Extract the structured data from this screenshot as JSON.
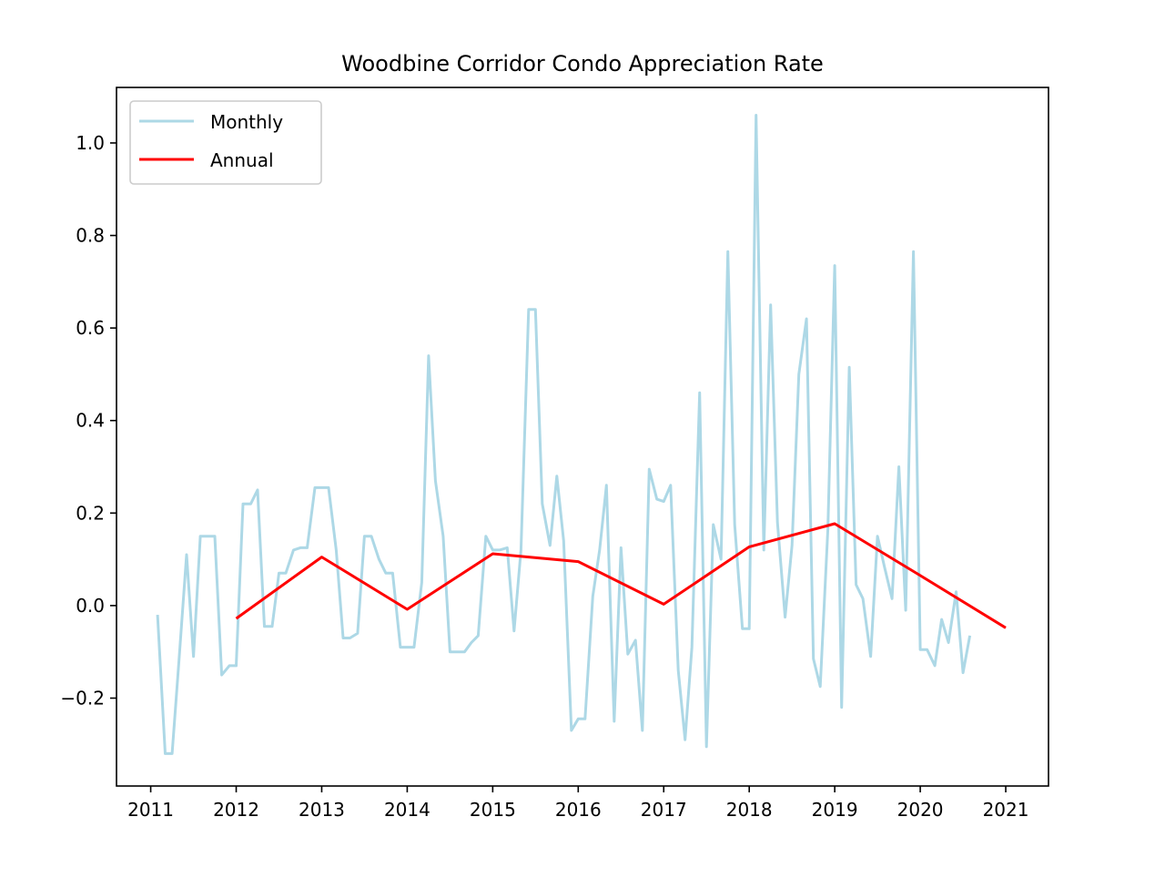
{
  "chart_data": {
    "type": "line",
    "title": "Woodbine Corridor Condo Appreciation Rate",
    "xlabel": "",
    "ylabel": "",
    "xlim": [
      2010.6,
      2021.5
    ],
    "ylim": [
      -0.39,
      1.12
    ],
    "x_ticks": [
      {
        "value": 2011,
        "label": "2011"
      },
      {
        "value": 2012,
        "label": "2012"
      },
      {
        "value": 2013,
        "label": "2013"
      },
      {
        "value": 2014,
        "label": "2014"
      },
      {
        "value": 2015,
        "label": "2015"
      },
      {
        "value": 2016,
        "label": "2016"
      },
      {
        "value": 2017,
        "label": "2017"
      },
      {
        "value": 2018,
        "label": "2018"
      },
      {
        "value": 2019,
        "label": "2019"
      },
      {
        "value": 2020,
        "label": "2020"
      },
      {
        "value": 2021,
        "label": "2021"
      }
    ],
    "y_ticks": [
      {
        "value": -0.2,
        "label": "−0.2"
      },
      {
        "value": 0.0,
        "label": "0.0"
      },
      {
        "value": 0.2,
        "label": "0.2"
      },
      {
        "value": 0.4,
        "label": "0.4"
      },
      {
        "value": 0.6,
        "label": "0.6"
      },
      {
        "value": 0.8,
        "label": "0.8"
      },
      {
        "value": 1.0,
        "label": "1.0"
      }
    ],
    "grid": false,
    "legend": {
      "position": "upper-left",
      "entries": [
        "Monthly",
        "Annual"
      ]
    },
    "series": [
      {
        "name": "Monthly",
        "color": "#add8e6",
        "points": [
          [
            2011.08,
            -0.02
          ],
          [
            2011.17,
            -0.32
          ],
          [
            2011.25,
            -0.32
          ],
          [
            2011.33,
            -0.12
          ],
          [
            2011.42,
            0.11
          ],
          [
            2011.5,
            -0.11
          ],
          [
            2011.58,
            0.15
          ],
          [
            2011.67,
            0.15
          ],
          [
            2011.75,
            0.15
          ],
          [
            2011.83,
            -0.15
          ],
          [
            2011.92,
            -0.13
          ],
          [
            2012.0,
            -0.13
          ],
          [
            2012.08,
            0.22
          ],
          [
            2012.17,
            0.22
          ],
          [
            2012.25,
            0.25
          ],
          [
            2012.33,
            -0.045
          ],
          [
            2012.42,
            -0.045
          ],
          [
            2012.5,
            0.07
          ],
          [
            2012.58,
            0.07
          ],
          [
            2012.67,
            0.12
          ],
          [
            2012.75,
            0.125
          ],
          [
            2012.83,
            0.125
          ],
          [
            2012.92,
            0.255
          ],
          [
            2013.0,
            0.255
          ],
          [
            2013.08,
            0.255
          ],
          [
            2013.17,
            0.12
          ],
          [
            2013.25,
            -0.07
          ],
          [
            2013.33,
            -0.07
          ],
          [
            2013.42,
            -0.06
          ],
          [
            2013.5,
            0.15
          ],
          [
            2013.58,
            0.15
          ],
          [
            2013.67,
            0.1
          ],
          [
            2013.75,
            0.07
          ],
          [
            2013.83,
            0.07
          ],
          [
            2013.92,
            -0.09
          ],
          [
            2014.0,
            -0.09
          ],
          [
            2014.08,
            -0.09
          ],
          [
            2014.17,
            0.05
          ],
          [
            2014.25,
            0.54
          ],
          [
            2014.33,
            0.27
          ],
          [
            2014.42,
            0.15
          ],
          [
            2014.5,
            -0.1
          ],
          [
            2014.58,
            -0.1
          ],
          [
            2014.67,
            -0.1
          ],
          [
            2014.75,
            -0.08
          ],
          [
            2014.83,
            -0.065
          ],
          [
            2014.92,
            0.15
          ],
          [
            2015.0,
            0.12
          ],
          [
            2015.08,
            0.12
          ],
          [
            2015.17,
            0.125
          ],
          [
            2015.25,
            -0.055
          ],
          [
            2015.33,
            0.12
          ],
          [
            2015.42,
            0.64
          ],
          [
            2015.5,
            0.64
          ],
          [
            2015.58,
            0.22
          ],
          [
            2015.67,
            0.13
          ],
          [
            2015.75,
            0.28
          ],
          [
            2015.83,
            0.14
          ],
          [
            2015.92,
            -0.27
          ],
          [
            2016.0,
            -0.245
          ],
          [
            2016.08,
            -0.245
          ],
          [
            2016.17,
            0.02
          ],
          [
            2016.25,
            0.12
          ],
          [
            2016.33,
            0.26
          ],
          [
            2016.42,
            -0.25
          ],
          [
            2016.5,
            0.125
          ],
          [
            2016.58,
            -0.105
          ],
          [
            2016.67,
            -0.075
          ],
          [
            2016.75,
            -0.27
          ],
          [
            2016.83,
            0.295
          ],
          [
            2016.92,
            0.23
          ],
          [
            2017.0,
            0.225
          ],
          [
            2017.08,
            0.26
          ],
          [
            2017.17,
            -0.14
          ],
          [
            2017.25,
            -0.29
          ],
          [
            2017.33,
            -0.09
          ],
          [
            2017.42,
            0.46
          ],
          [
            2017.5,
            -0.305
          ],
          [
            2017.58,
            0.175
          ],
          [
            2017.67,
            0.1
          ],
          [
            2017.75,
            0.765
          ],
          [
            2017.83,
            0.175
          ],
          [
            2017.92,
            -0.05
          ],
          [
            2018.0,
            -0.05
          ],
          [
            2018.08,
            1.06
          ],
          [
            2018.17,
            0.12
          ],
          [
            2018.25,
            0.65
          ],
          [
            2018.33,
            0.18
          ],
          [
            2018.42,
            -0.025
          ],
          [
            2018.5,
            0.13
          ],
          [
            2018.58,
            0.5
          ],
          [
            2018.67,
            0.62
          ],
          [
            2018.75,
            -0.115
          ],
          [
            2018.83,
            -0.175
          ],
          [
            2018.92,
            0.165
          ],
          [
            2019.0,
            0.735
          ],
          [
            2019.08,
            -0.22
          ],
          [
            2019.17,
            0.515
          ],
          [
            2019.25,
            0.045
          ],
          [
            2019.33,
            0.015
          ],
          [
            2019.42,
            -0.11
          ],
          [
            2019.5,
            0.15
          ],
          [
            2019.58,
            0.085
          ],
          [
            2019.67,
            0.015
          ],
          [
            2019.75,
            0.3
          ],
          [
            2019.83,
            -0.01
          ],
          [
            2019.92,
            0.765
          ],
          [
            2020.0,
            -0.095
          ],
          [
            2020.08,
            -0.095
          ],
          [
            2020.17,
            -0.13
          ],
          [
            2020.25,
            -0.03
          ],
          [
            2020.33,
            -0.08
          ],
          [
            2020.42,
            0.03
          ],
          [
            2020.5,
            -0.145
          ],
          [
            2020.58,
            -0.065
          ]
        ]
      },
      {
        "name": "Annual",
        "color": "#ff0000",
        "points": [
          [
            2012,
            -0.028
          ],
          [
            2013,
            0.105
          ],
          [
            2014,
            -0.008
          ],
          [
            2015,
            0.112
          ],
          [
            2016,
            0.095
          ],
          [
            2017,
            0.003
          ],
          [
            2018,
            0.127
          ],
          [
            2019,
            0.177
          ],
          [
            2020,
            0.065
          ],
          [
            2021,
            -0.048
          ]
        ]
      }
    ]
  }
}
